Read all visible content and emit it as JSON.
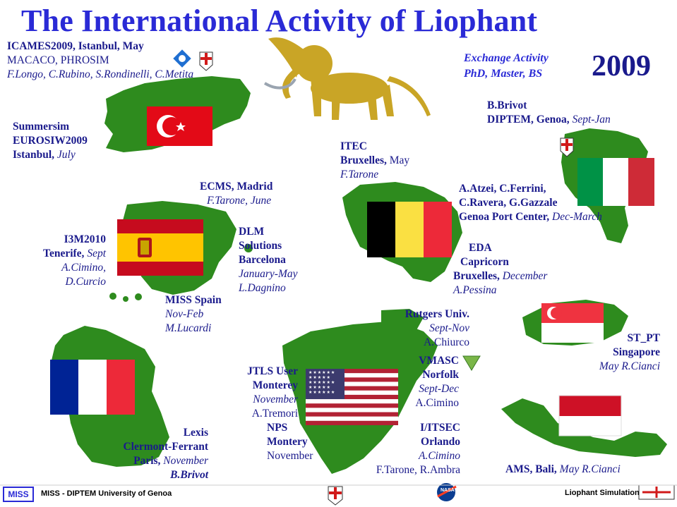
{
  "title": "The International Activity of Liophant",
  "year": "2009",
  "exchange": {
    "line1": "Exchange Activity",
    "line2": "PhD, Master, BS"
  },
  "turkey": {
    "icames": "ICAMES2009, Istanbul, May",
    "macaco": "MACACO, PHROSIM",
    "people": "F.Longo, C.Rubino, S.Rondinelli, C.Metita",
    "summersim": "Summersim",
    "eurosiw": "EUROSIW2009",
    "istanbul_city": "Istanbul,",
    "istanbul_month": "July"
  },
  "belgium": {
    "itec": "ITEC",
    "bruxelles": "Bruxelles,",
    "month": "May",
    "person": "F.Tarone",
    "eda": "EDA",
    "capricorn": "Capricorn",
    "bru2": "Bruxelles,",
    "month2": "December",
    "person2": "A.Pessina"
  },
  "italy": {
    "brivot": "B.Brivot",
    "diptem": "DIPTEM, Genoa,",
    "diptem_when": "Sept-Jan",
    "atzei": "A.Atzei, C.Ferrini,",
    "ravera": "C.Ravera, G.Gazzale",
    "genoa": "Genoa Port Center,",
    "genoa_when": "Dec-March"
  },
  "spain": {
    "ecms": "ECMS, Madrid",
    "ecms_who": "F.Tarone, June",
    "i3m": "I3M2010",
    "tenerife": "Tenerife,",
    "tenerife_when": "Sept",
    "cimino": "A.Cimino,",
    "curcio": "D.Curcio",
    "dlm": "DLM",
    "solutions": "Solutions",
    "barcelona": "Barcelona",
    "jan_may": "January-May",
    "dagnino": "L.Dagnino",
    "miss": "MISS Spain",
    "nov_feb": "Nov-Feb",
    "lucardi": "M.Lucardi"
  },
  "france": {
    "lexis": "Lexis",
    "clermont": "Clermont-Ferrant",
    "paris": "Paris,",
    "paris_when": "November",
    "brivot": "B.Brivot"
  },
  "usa": {
    "rutgers": "Rutgers Univ.",
    "sept_nov": "Sept-Nov",
    "chiurco": "A.Chiurco",
    "jtls": "JTLS User",
    "monterey": "Monterey",
    "november": "November",
    "tremori": "A.Tremori",
    "nps": "NPS",
    "montery": "Montery",
    "november2": "November",
    "vmasc": "VMASC",
    "norfolk": "Norfolk",
    "sept_dec": "Sept-Dec",
    "cimino": "A.Cimino",
    "iitsec": "I/ITSEC",
    "orlando": "Orlando",
    "cimino2": "A.Cimino",
    "tarone": "F.Tarone, R.Ambra"
  },
  "singapore": {
    "stpt": "ST_PT",
    "name": "Singapore",
    "when": "May R.Cianci"
  },
  "indonesia": {
    "ams": "AMS, Bali,",
    "when": "May R.Cianci"
  },
  "footer": {
    "miss_logo": "MISS",
    "left": "MISS - DIPTEM University of Genoa",
    "right": "Liophant Simulation",
    "nasa": "NASA"
  },
  "colors": {
    "title": "#2a2ad6",
    "text": "#1a1a8c",
    "land": "#2e8b1e",
    "lion": "#c9a526"
  }
}
